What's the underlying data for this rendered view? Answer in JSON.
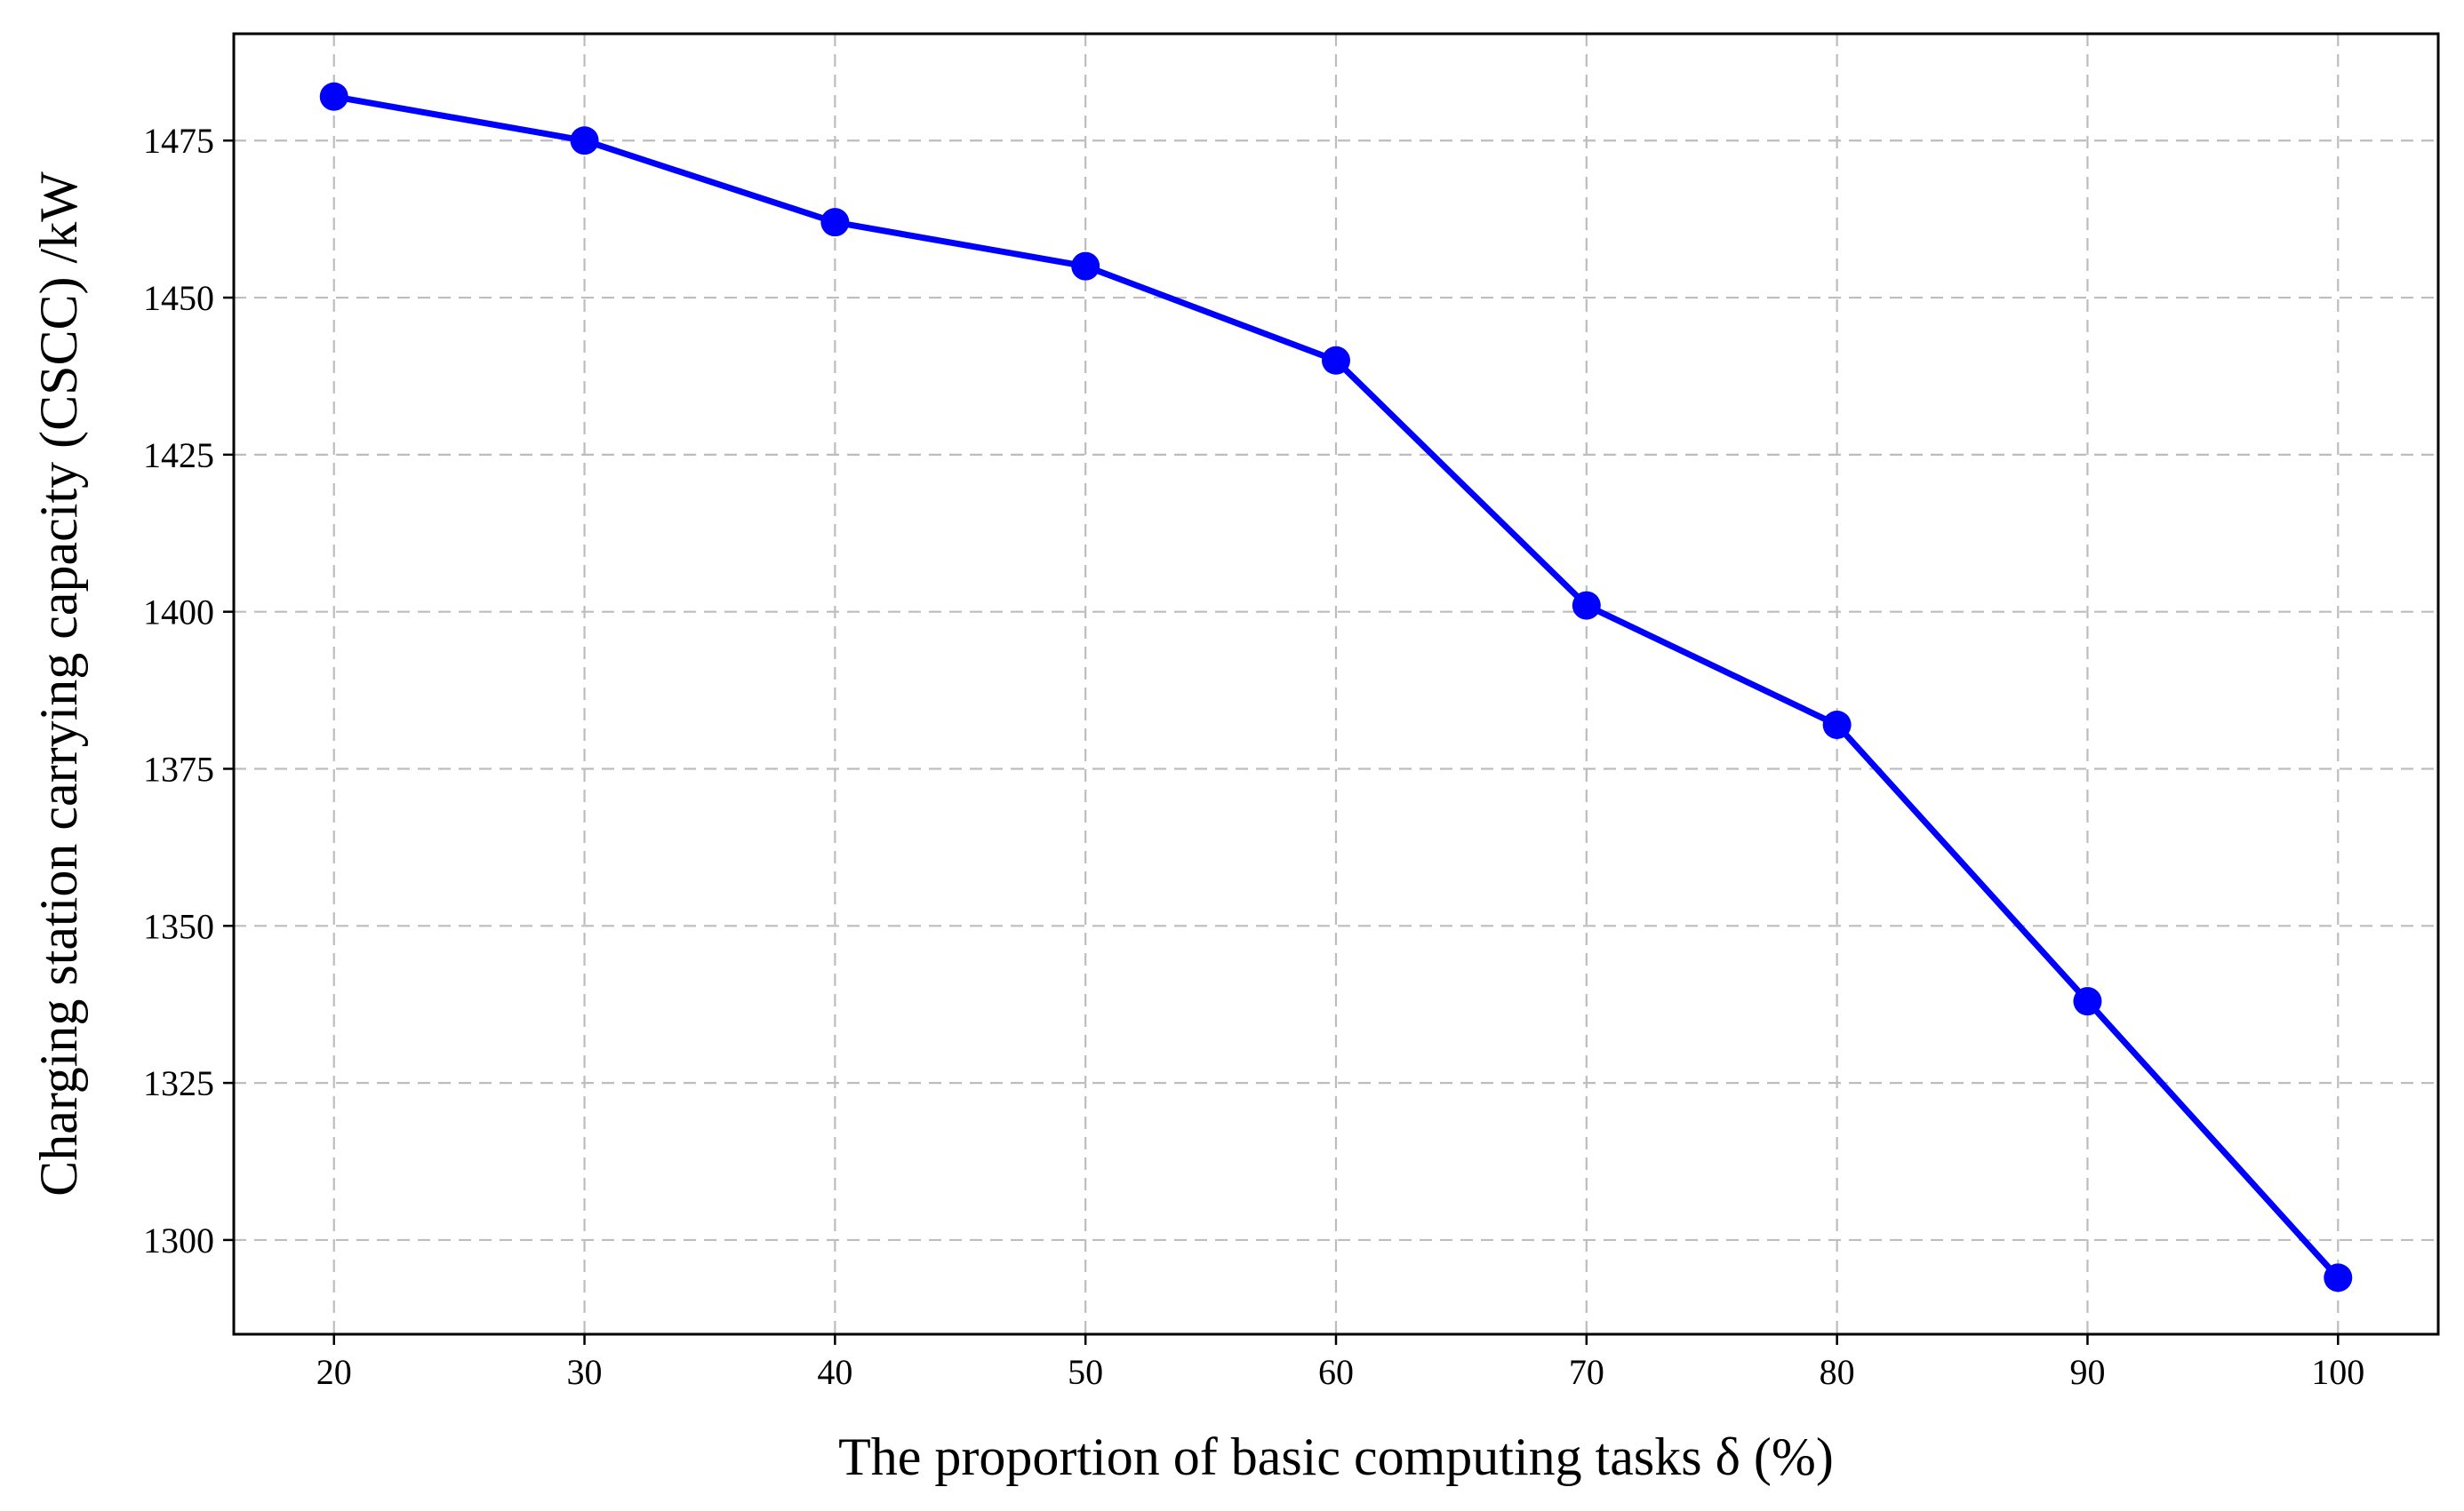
{
  "chart_data": {
    "type": "line",
    "title": "",
    "xlabel": "The proportion of basic computing tasks δ (%)",
    "ylabel": "Charging station carrying capacity (CSCC) /kW",
    "xlim": [
      16,
      104
    ],
    "ylim": [
      1285,
      1492
    ],
    "xticks": [
      20,
      30,
      40,
      50,
      60,
      70,
      80,
      90,
      100
    ],
    "yticks": [
      1300,
      1325,
      1350,
      1375,
      1400,
      1425,
      1450,
      1475
    ],
    "grid": true,
    "legend": "none",
    "series": [
      {
        "color": "#0000ff",
        "marker": "circle",
        "x": [
          20,
          30,
          40,
          50,
          60,
          70,
          80,
          90,
          100
        ],
        "y": [
          1482,
          1475,
          1462,
          1455,
          1440,
          1401,
          1382,
          1338,
          1294
        ]
      }
    ]
  }
}
